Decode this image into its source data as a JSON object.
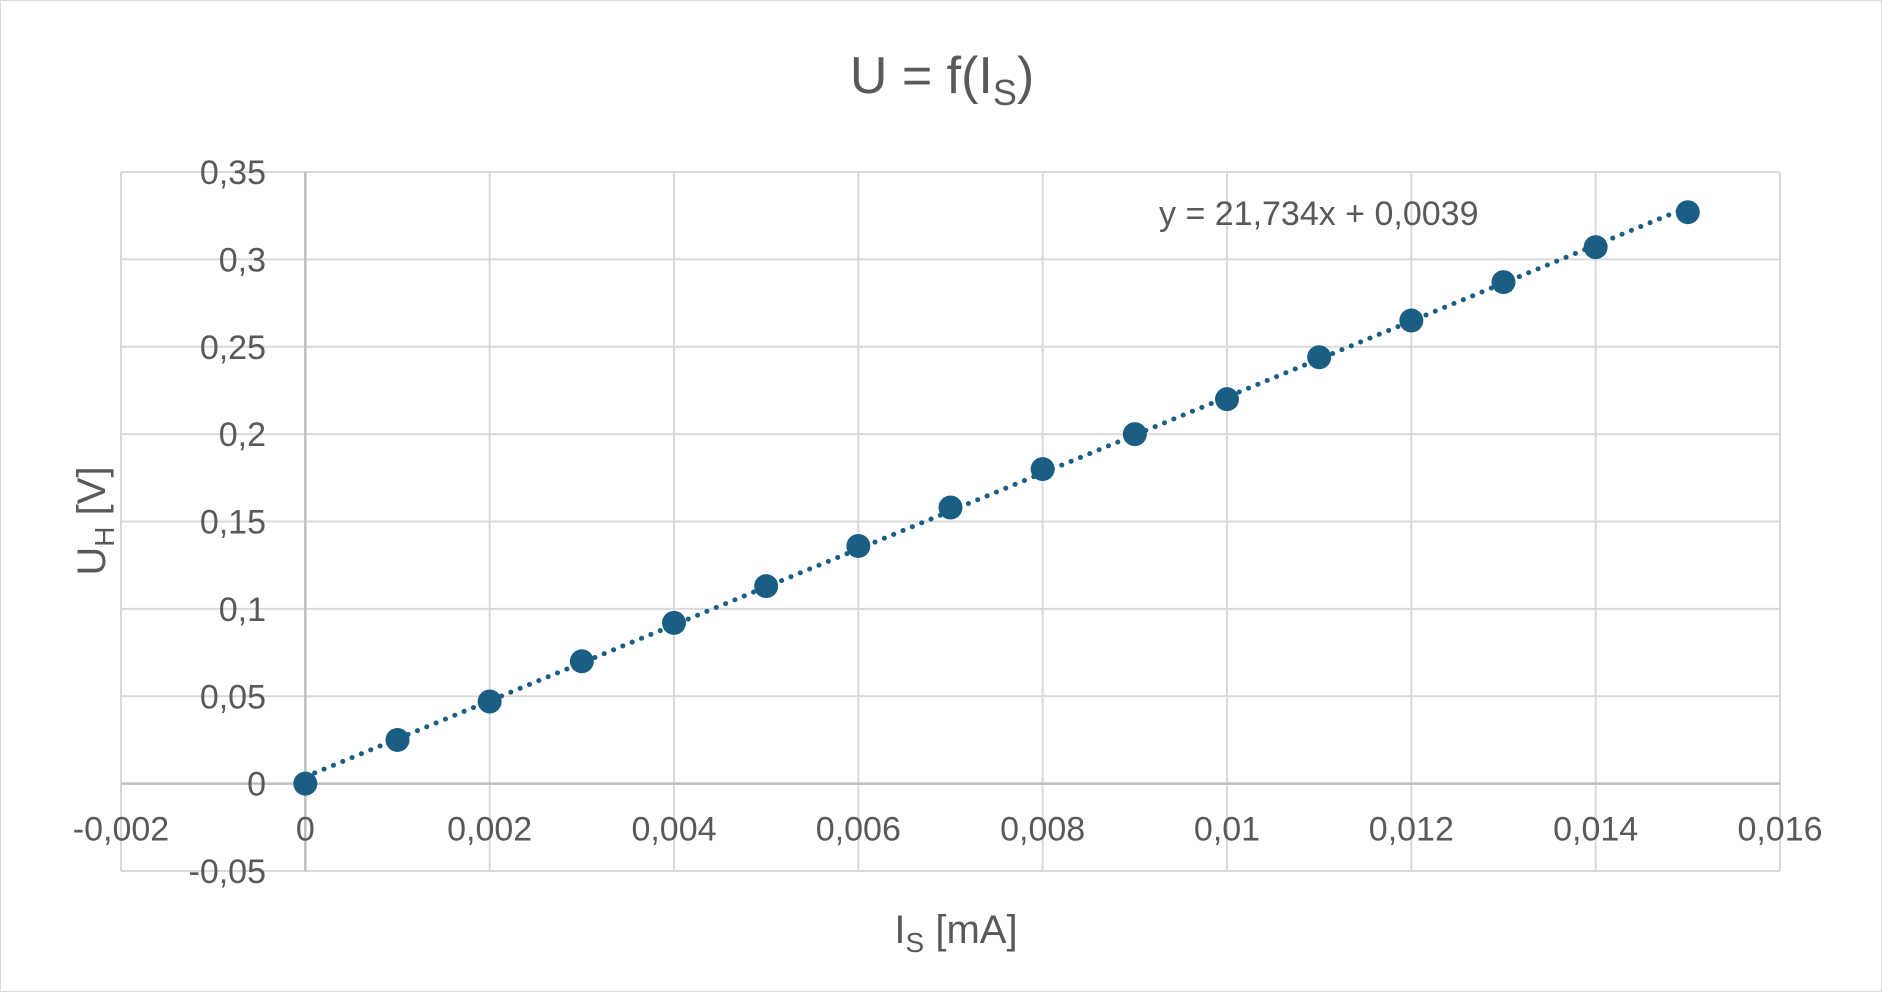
{
  "colors": {
    "series": "#1b5e84",
    "grid": "#d9d9d9",
    "text": "#595959"
  },
  "title": {
    "main": "U = f(I",
    "sub": "S",
    "end": ")"
  },
  "x_axis_title": {
    "main": "I",
    "sub": "S",
    "end": " [mA]"
  },
  "y_axis_title": {
    "main": "U",
    "sub": "H",
    "end": " [V]"
  },
  "chart_data": {
    "type": "scatter",
    "title": "U = f(IS)",
    "xlabel": "IS [mA]",
    "ylabel": "UH [V]",
    "xlim": [
      -0.002,
      0.016
    ],
    "ylim": [
      -0.05,
      0.35
    ],
    "x_ticks": [
      "-0,002",
      "0",
      "0,002",
      "0,004",
      "0,006",
      "0,008",
      "0,01",
      "0,012",
      "0,014",
      "0,016"
    ],
    "y_ticks": [
      "-0,05",
      "0",
      "0,05",
      "0,1",
      "0,15",
      "0,2",
      "0,25",
      "0,3",
      "0,35"
    ],
    "grid": true,
    "legend": "none",
    "series": [
      {
        "x": [
          0,
          0.001,
          0.002,
          0.003,
          0.004,
          0.005,
          0.006,
          0.007,
          0.008,
          0.009,
          0.01,
          0.011,
          0.012,
          0.013,
          0.014,
          0.015
        ],
        "y": [
          0,
          0.025,
          0.047,
          0.07,
          0.092,
          0.113,
          0.136,
          0.158,
          0.18,
          0.2,
          0.22,
          0.244,
          0.265,
          0.287,
          0.307,
          0.327
        ]
      }
    ],
    "trendline": {
      "type": "linear",
      "style": "dotted",
      "slope": 21.734,
      "intercept": 0.0039,
      "equation_label": "y = 21,734x + 0,0039"
    }
  }
}
